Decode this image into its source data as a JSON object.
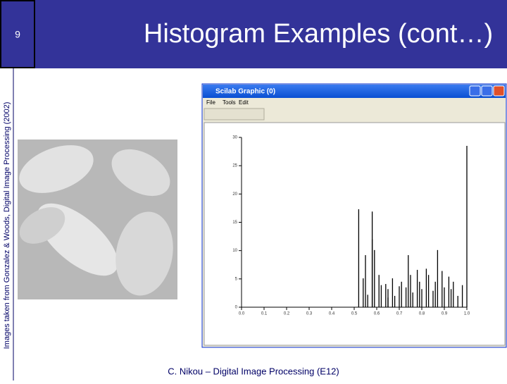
{
  "slide_number": "9",
  "title": "Histogram Examples (cont…)",
  "side_note": "Images taken from Gonzalez & Woods, Digital Image Processing (2002)",
  "footer": "C. Nikou – Digital Image Processing (E12)",
  "window": {
    "title": "Scilab Graphic (0)",
    "menus": [
      "File",
      "Tools",
      "Edit"
    ]
  },
  "chart_data": {
    "type": "bar",
    "x": [
      0.52,
      0.54,
      0.55,
      0.56,
      0.58,
      0.58,
      0.59,
      0.61,
      0.62,
      0.64,
      0.65,
      0.65,
      0.67,
      0.68,
      0.7,
      0.71,
      0.73,
      0.74,
      0.75,
      0.76,
      0.78,
      0.79,
      0.8,
      0.82,
      0.83,
      0.85,
      0.86,
      0.87,
      0.89,
      0.9,
      0.92,
      0.93,
      0.94,
      0.96,
      0.98,
      1.0
    ],
    "values": [
      17.3,
      5.1,
      9.2,
      2.2,
      16.9,
      12,
      10.1,
      5.7,
      3.9,
      4.1,
      3.2,
      1.7,
      5.1,
      2,
      3.7,
      4.5,
      3.5,
      9.2,
      5.7,
      2.6,
      6.6,
      4.5,
      3.2,
      6.8,
      5.7,
      2.9,
      4.5,
      10.1,
      6.4,
      3.5,
      5.4,
      3.2,
      4.5,
      2,
      3.9,
      28.5
    ],
    "color": "#000000",
    "xlim": [
      0,
      1
    ],
    "xticks": [
      {
        "value": 0,
        "label": "0.0"
      },
      0.1,
      0.2,
      0.3,
      0.4,
      0.5,
      0.6,
      0.7,
      0.8,
      0.9,
      {
        "value": 1,
        "label": "1.0"
      }
    ],
    "ylim": [
      0,
      30
    ],
    "yticks": [
      0,
      5,
      10,
      15,
      20,
      25,
      30
    ]
  }
}
